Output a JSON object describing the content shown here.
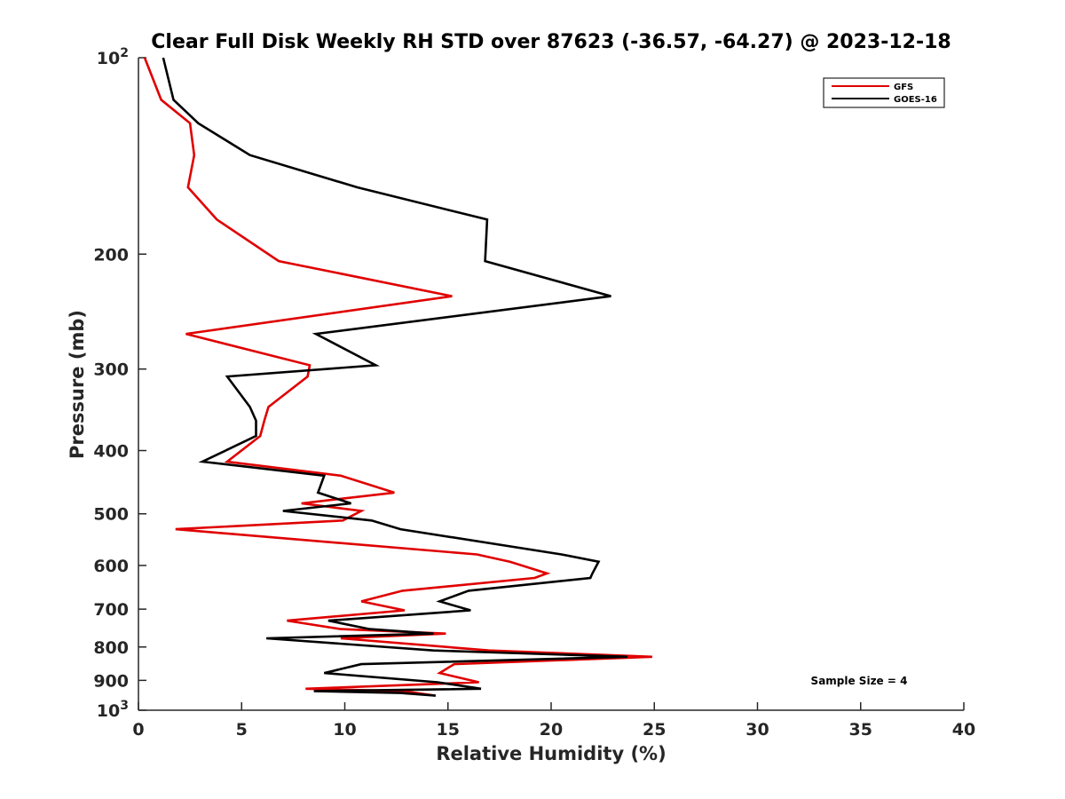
{
  "chart_data": {
    "type": "line",
    "title": "Clear Full Disk Weekly RH STD over 87623 (-36.57, -64.27) @ 2023-12-18",
    "xlabel": "Relative Humidity (%)",
    "ylabel": "Pressure (mb)",
    "xlim": [
      0,
      40
    ],
    "ylim": [
      100,
      1000
    ],
    "y_scale": "log",
    "y_reversed": true,
    "grid": false,
    "legend_placement": "top-right",
    "x_ticks": [
      {
        "value": 0,
        "label": "0"
      },
      {
        "value": 5,
        "label": "5"
      },
      {
        "value": 10,
        "label": "10"
      },
      {
        "value": 15,
        "label": "15"
      },
      {
        "value": 20,
        "label": "20"
      },
      {
        "value": 25,
        "label": "25"
      },
      {
        "value": 30,
        "label": "30"
      },
      {
        "value": 35,
        "label": "35"
      },
      {
        "value": 40,
        "label": "40"
      }
    ],
    "y_ticks": [
      {
        "value": 100,
        "base": "10",
        "exp": "2"
      },
      {
        "value": 200,
        "label": "200"
      },
      {
        "value": 300,
        "label": "300"
      },
      {
        "value": 400,
        "label": "400"
      },
      {
        "value": 500,
        "label": "500"
      },
      {
        "value": 600,
        "label": "600"
      },
      {
        "value": 700,
        "label": "700"
      },
      {
        "value": 800,
        "label": "800"
      },
      {
        "value": 900,
        "label": "900"
      },
      {
        "value": 1000,
        "base": "10",
        "exp": "3"
      }
    ],
    "annotation": "Sample Size = 4",
    "series": [
      {
        "name": "GFS",
        "color": "#e00000",
        "points": [
          [
            0.3,
            100
          ],
          [
            1.1,
            116
          ],
          [
            2.5,
            126
          ],
          [
            2.7,
            141
          ],
          [
            2.4,
            158
          ],
          [
            3.8,
            177
          ],
          [
            6.8,
            205
          ],
          [
            15.2,
            232
          ],
          [
            2.3,
            265
          ],
          [
            8.3,
            296
          ],
          [
            8.2,
            308
          ],
          [
            6.3,
            343
          ],
          [
            6.1,
            360
          ],
          [
            5.9,
            380
          ],
          [
            4.3,
            416
          ],
          [
            9.8,
            437
          ],
          [
            12.4,
            464
          ],
          [
            7.9,
            482
          ],
          [
            10.8,
            495
          ],
          [
            9.9,
            512
          ],
          [
            1.8,
            528
          ],
          [
            16.4,
            577
          ],
          [
            18.0,
            592
          ],
          [
            19.8,
            617
          ],
          [
            19.2,
            627
          ],
          [
            12.8,
            656
          ],
          [
            10.8,
            681
          ],
          [
            12.9,
            703
          ],
          [
            7.2,
            729
          ],
          [
            9.8,
            751
          ],
          [
            14.9,
            763
          ],
          [
            9.8,
            776
          ],
          [
            17.0,
            810
          ],
          [
            24.9,
            828
          ],
          [
            15.3,
            850
          ],
          [
            14.6,
            877
          ],
          [
            16.5,
            906
          ],
          [
            8.1,
            927
          ],
          [
            12.9,
            935
          ],
          [
            14.4,
            950
          ]
        ]
      },
      {
        "name": "GOES-16",
        "color": "#000000",
        "points": [
          [
            1.2,
            100
          ],
          [
            1.7,
            116
          ],
          [
            2.9,
            126
          ],
          [
            5.4,
            141
          ],
          [
            10.6,
            158
          ],
          [
            16.9,
            177
          ],
          [
            16.8,
            205
          ],
          [
            22.9,
            232
          ],
          [
            8.6,
            265
          ],
          [
            11.5,
            296
          ],
          [
            4.3,
            308
          ],
          [
            5.4,
            343
          ],
          [
            5.7,
            360
          ],
          [
            5.7,
            380
          ],
          [
            3.1,
            416
          ],
          [
            9.0,
            437
          ],
          [
            8.7,
            464
          ],
          [
            10.3,
            482
          ],
          [
            7.0,
            495
          ],
          [
            11.3,
            512
          ],
          [
            12.7,
            528
          ],
          [
            20.5,
            577
          ],
          [
            22.3,
            592
          ],
          [
            22.0,
            617
          ],
          [
            21.9,
            627
          ],
          [
            16.0,
            656
          ],
          [
            14.6,
            681
          ],
          [
            16.1,
            703
          ],
          [
            9.2,
            729
          ],
          [
            11.2,
            751
          ],
          [
            14.3,
            763
          ],
          [
            6.2,
            776
          ],
          [
            14.3,
            810
          ],
          [
            23.7,
            828
          ],
          [
            10.8,
            850
          ],
          [
            9.0,
            877
          ],
          [
            14.5,
            906
          ],
          [
            16.6,
            927
          ],
          [
            8.5,
            935
          ],
          [
            12.7,
            941
          ],
          [
            14.4,
            950
          ]
        ]
      }
    ]
  }
}
